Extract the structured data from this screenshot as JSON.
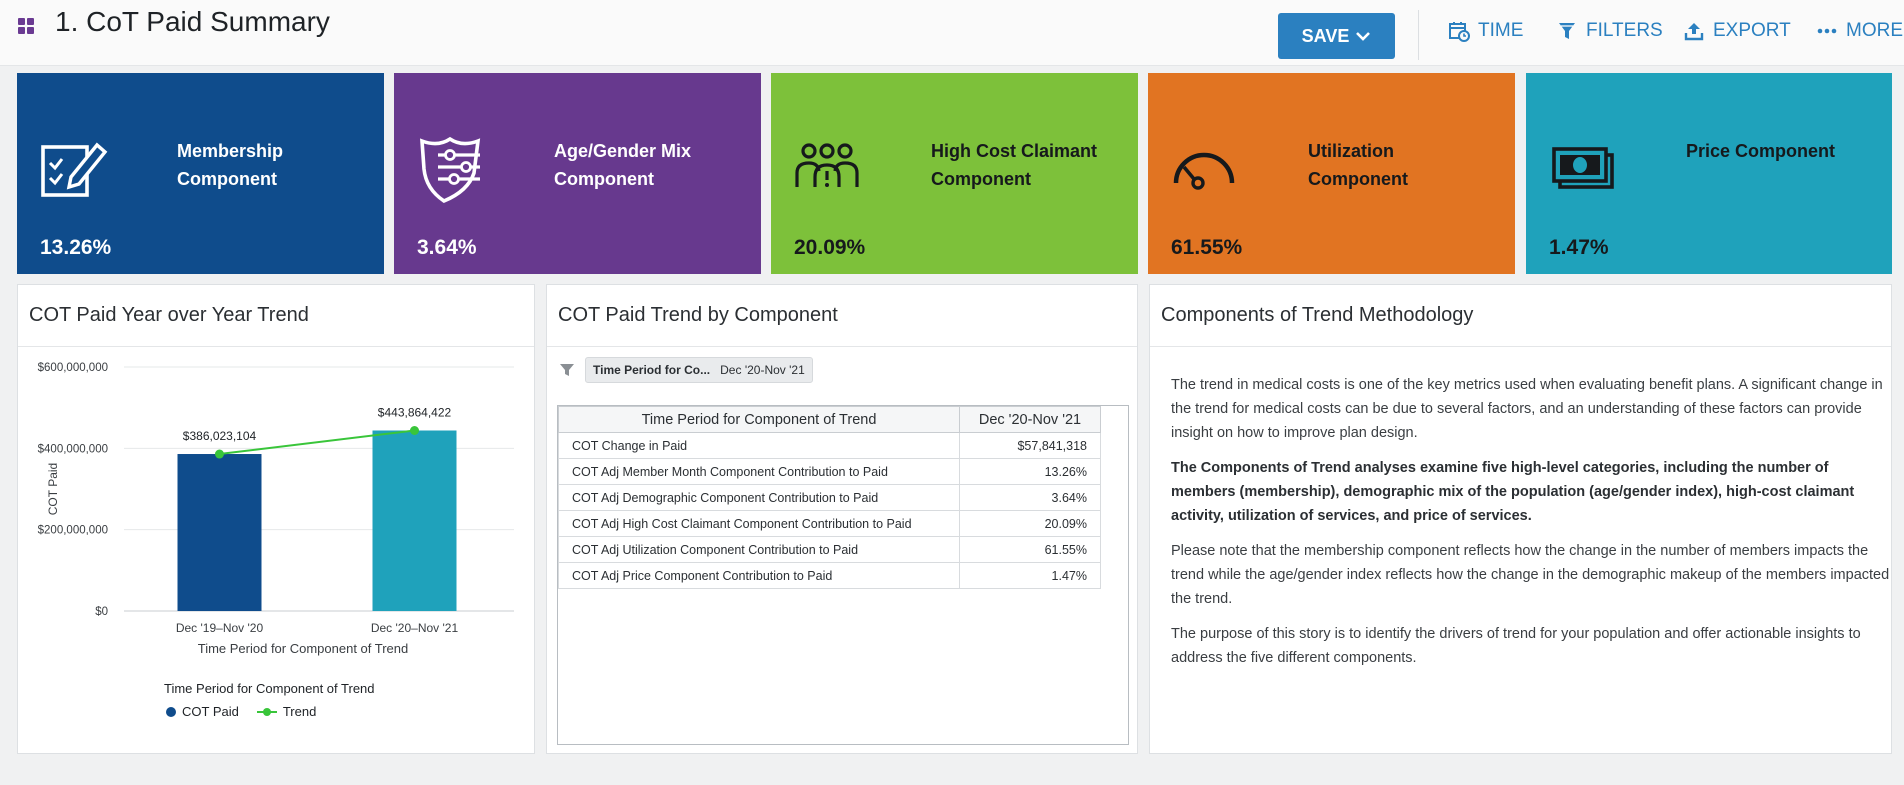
{
  "header": {
    "title": "1. CoT Paid Summary",
    "save_label": "SAVE",
    "actions": {
      "time": "TIME",
      "filters": "FILTERS",
      "export": "EXPORT",
      "more": "MORE"
    },
    "accent_color": "#2b80c0"
  },
  "tiles": [
    {
      "label": "Membership Component",
      "value": "13.26%",
      "color": "#0f4c8c",
      "icon": "checklist-icon"
    },
    {
      "label": "Age/Gender Mix Component",
      "value": "3.64%",
      "color": "#67398e",
      "icon": "shield-sliders-icon"
    },
    {
      "label": "High Cost Claimant Component",
      "value": "20.09%",
      "color": "#7dc13a",
      "icon": "people-alert-icon"
    },
    {
      "label": "Utilization Component",
      "value": "61.55%",
      "color": "#e17422",
      "icon": "gauge-icon"
    },
    {
      "label": "Price Component",
      "value": "1.47%",
      "color": "#1fa2bb",
      "icon": "money-icon"
    }
  ],
  "yoy_panel": {
    "title": "COT Paid Year over Year Trend",
    "legend_title": "Time Period for Component of Trend",
    "legend_items": [
      "COT Paid",
      "Trend"
    ]
  },
  "chart_data": {
    "type": "bar",
    "categories": [
      "Dec '19–Nov '20",
      "Dec '20–Nov '21"
    ],
    "series": [
      {
        "name": "COT Paid",
        "values": [
          386023104,
          443864422
        ],
        "colors": [
          "#0f4c8c",
          "#1fa2bb"
        ]
      },
      {
        "name": "Trend",
        "type": "line",
        "values": [
          386023104,
          443864422
        ],
        "color": "#39c53a"
      }
    ],
    "data_labels": [
      "$386,023,104",
      "$443,864,422"
    ],
    "ylabel": "COT Paid",
    "xlabel": "Time Period for Component of Trend",
    "yticks": [
      "$0",
      "$200,000,000",
      "$400,000,000",
      "$600,000,000"
    ],
    "ylim": [
      0,
      600000000
    ],
    "grid": true
  },
  "component_panel": {
    "title": "COT Paid Trend by Component",
    "filter_key": "Time Period for Co...",
    "filter_value": "Dec '20-Nov '21",
    "table": {
      "headers": [
        "Time Period for Component of Trend",
        "Dec '20-Nov '21"
      ],
      "rows": [
        [
          "COT Change in Paid",
          "$57,841,318"
        ],
        [
          "COT Adj Member Month Component Contribution to Paid",
          "13.26%"
        ],
        [
          "COT Adj Demographic Component Contribution to Paid",
          "3.64%"
        ],
        [
          "COT Adj High Cost Claimant Component Contribution to Paid",
          "20.09%"
        ],
        [
          "COT Adj Utilization Component Contribution to Paid",
          "61.55%"
        ],
        [
          "COT Adj Price Component Contribution to Paid",
          "1.47%"
        ]
      ]
    }
  },
  "methodology_panel": {
    "title": "Components of Trend Methodology",
    "paragraphs": [
      "The trend in medical costs is one of the key metrics used when evaluating benefit plans. A significant change in the trend for medical costs can be due to several factors, and an understanding of these factors can provide insight on how to improve plan design.",
      "The Components of Trend analyses examine five high-level categories, including the number of members (membership), demographic mix of the population (age/gender index), high-cost claimant activity, utilization of services, and price of services.",
      "Please note that the membership component reflects how the change in the number of members impacts the trend while the age/gender index reflects how the change in the demographic makeup of the members impacted the trend.",
      "The purpose of this story is to identify the drivers of trend for your population and offer actionable insights to address the five different components."
    ]
  }
}
